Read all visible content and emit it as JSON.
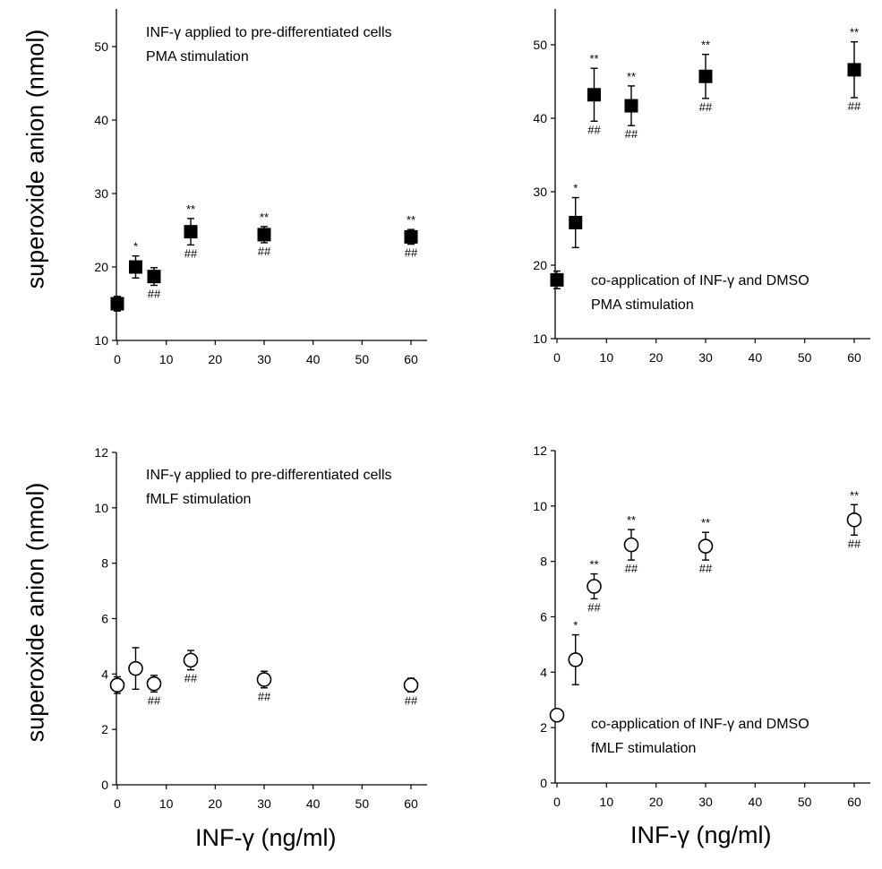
{
  "ylabel_top": "superoxide anion (nmol)",
  "ylabel_bottom": "superoxide anion (nmol)",
  "xlabel_left": "INF-γ (ng/ml)",
  "xlabel_right": "INF-γ (ng/ml)",
  "chart_data": [
    {
      "type": "scatter",
      "panel": "top-left",
      "marker": "filled-square",
      "annotation": [
        "INF-γ applied to pre-differentiated cells",
        "PMA stimulation"
      ],
      "xlim": [
        0,
        65
      ],
      "ylim": [
        10,
        55
      ],
      "xticks": [
        0,
        10,
        20,
        30,
        40,
        50,
        60
      ],
      "yticks": [
        10,
        20,
        30,
        40,
        50
      ],
      "points": [
        {
          "x": 0,
          "y": 15.0,
          "err": 1.0,
          "star": "",
          "hash": ""
        },
        {
          "x": 3.75,
          "y": 20.0,
          "err": 1.5,
          "star": "*",
          "hash": ""
        },
        {
          "x": 7.5,
          "y": 18.7,
          "err": 1.2,
          "star": "",
          "hash": "##"
        },
        {
          "x": 15,
          "y": 24.8,
          "err": 1.8,
          "star": "**",
          "hash": "##"
        },
        {
          "x": 30,
          "y": 24.4,
          "err": 1.1,
          "star": "**",
          "hash": "##"
        },
        {
          "x": 60,
          "y": 24.1,
          "err": 1.0,
          "star": "**",
          "hash": "##"
        }
      ]
    },
    {
      "type": "scatter",
      "panel": "top-right",
      "marker": "filled-square",
      "annotation": [
        "co-application of INF-γ and DMSO",
        "PMA stimulation"
      ],
      "xlim": [
        0,
        65
      ],
      "ylim": [
        10,
        55
      ],
      "xticks": [
        0,
        10,
        20,
        30,
        40,
        50,
        60
      ],
      "yticks": [
        10,
        20,
        30,
        40,
        50
      ],
      "points": [
        {
          "x": 0,
          "y": 18.0,
          "err": 1.2,
          "star": "",
          "hash": ""
        },
        {
          "x": 3.75,
          "y": 25.8,
          "err": 3.4,
          "star": "*",
          "hash": ""
        },
        {
          "x": 7.5,
          "y": 43.2,
          "err": 3.6,
          "star": "**",
          "hash": "##"
        },
        {
          "x": 15,
          "y": 41.7,
          "err": 2.7,
          "star": "**",
          "hash": "##"
        },
        {
          "x": 30,
          "y": 45.7,
          "err": 3.0,
          "star": "**",
          "hash": "##"
        },
        {
          "x": 60,
          "y": 46.6,
          "err": 3.8,
          "star": "**",
          "hash": "##"
        }
      ]
    },
    {
      "type": "scatter",
      "panel": "bottom-left",
      "marker": "open-circle",
      "annotation": [
        "INF-γ applied to pre-differentiated cells",
        "fMLF stimulation"
      ],
      "xlim": [
        0,
        65
      ],
      "ylim": [
        0,
        12
      ],
      "xticks": [
        0,
        10,
        20,
        30,
        40,
        50,
        60
      ],
      "yticks": [
        0,
        2,
        4,
        6,
        8,
        10,
        12
      ],
      "points": [
        {
          "x": 0,
          "y": 3.6,
          "err": 0.3,
          "star": "",
          "hash": ""
        },
        {
          "x": 3.75,
          "y": 4.2,
          "err": 0.75,
          "star": "",
          "hash": ""
        },
        {
          "x": 7.5,
          "y": 3.65,
          "err": 0.3,
          "star": "",
          "hash": "##"
        },
        {
          "x": 15,
          "y": 4.5,
          "err": 0.35,
          "star": "",
          "hash": "##"
        },
        {
          "x": 30,
          "y": 3.8,
          "err": 0.3,
          "star": "",
          "hash": "##"
        },
        {
          "x": 60,
          "y": 3.6,
          "err": 0.25,
          "star": "",
          "hash": "##"
        }
      ]
    },
    {
      "type": "scatter",
      "panel": "bottom-right",
      "marker": "open-circle",
      "annotation": [
        "co-application of INF-γ and DMSO",
        "fMLF stimulation"
      ],
      "xlim": [
        0,
        65
      ],
      "ylim": [
        0,
        12
      ],
      "xticks": [
        0,
        10,
        20,
        30,
        40,
        50,
        60
      ],
      "yticks": [
        0,
        2,
        4,
        6,
        8,
        10,
        12
      ],
      "points": [
        {
          "x": 0,
          "y": 2.45,
          "err": 0.2,
          "star": "",
          "hash": ""
        },
        {
          "x": 3.75,
          "y": 4.45,
          "err": 0.9,
          "star": "*",
          "hash": ""
        },
        {
          "x": 7.5,
          "y": 7.1,
          "err": 0.45,
          "star": "**",
          "hash": "##"
        },
        {
          "x": 15,
          "y": 8.6,
          "err": 0.55,
          "star": "**",
          "hash": "##"
        },
        {
          "x": 30,
          "y": 8.55,
          "err": 0.5,
          "star": "**",
          "hash": "##"
        },
        {
          "x": 60,
          "y": 9.5,
          "err": 0.55,
          "star": "**",
          "hash": "##"
        }
      ]
    }
  ]
}
